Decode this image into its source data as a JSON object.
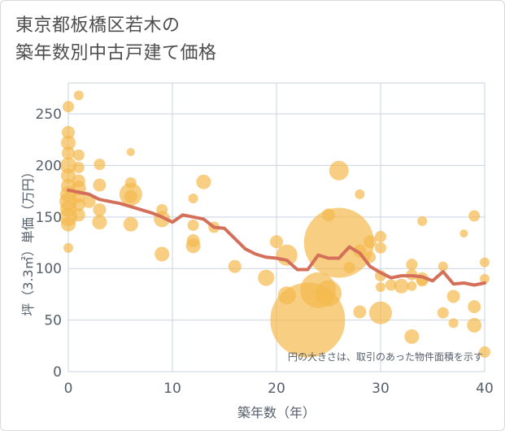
{
  "chart_data": {
    "type": "scatter",
    "title_lines": [
      "東京都板橋区若木の",
      "築年数別中古戸建て価格"
    ],
    "xlabel": "築年数（年）",
    "ylabel": "坪（3.3㎡）単価（万円）",
    "xlim": [
      0,
      40
    ],
    "ylim": [
      0,
      280
    ],
    "x_ticks": [
      0,
      10,
      20,
      30,
      40
    ],
    "y_ticks": [
      0,
      50,
      100,
      150,
      200,
      250
    ],
    "grid": true,
    "annotation": "円の大きさは、取引のあった物件面積を示す",
    "colors": {
      "bubble": "#f3b94d",
      "line": "#d4705a",
      "grid": "#c9d3e2",
      "text": "#555f6b"
    },
    "series": [
      {
        "kind": "bubble",
        "points": [
          {
            "x": 0,
            "y": 257,
            "s": 7
          },
          {
            "x": 0,
            "y": 232,
            "s": 8
          },
          {
            "x": 0,
            "y": 222,
            "s": 9
          },
          {
            "x": 0,
            "y": 212,
            "s": 8
          },
          {
            "x": 0,
            "y": 200,
            "s": 10
          },
          {
            "x": 0,
            "y": 190,
            "s": 9
          },
          {
            "x": 0,
            "y": 180,
            "s": 9
          },
          {
            "x": 0,
            "y": 172,
            "s": 10
          },
          {
            "x": 0,
            "y": 165,
            "s": 11
          },
          {
            "x": 0,
            "y": 158,
            "s": 10
          },
          {
            "x": 0,
            "y": 150,
            "s": 11
          },
          {
            "x": 0,
            "y": 143,
            "s": 9
          },
          {
            "x": 0,
            "y": 120,
            "s": 6
          },
          {
            "x": 1,
            "y": 268,
            "s": 6
          },
          {
            "x": 1,
            "y": 210,
            "s": 7
          },
          {
            "x": 1,
            "y": 198,
            "s": 7
          },
          {
            "x": 1,
            "y": 185,
            "s": 8
          },
          {
            "x": 1,
            "y": 178,
            "s": 9
          },
          {
            "x": 1,
            "y": 170,
            "s": 8
          },
          {
            "x": 1,
            "y": 162,
            "s": 8
          },
          {
            "x": 1,
            "y": 152,
            "s": 8
          },
          {
            "x": 2,
            "y": 165,
            "s": 8
          },
          {
            "x": 3,
            "y": 201,
            "s": 7
          },
          {
            "x": 3,
            "y": 181,
            "s": 8
          },
          {
            "x": 3,
            "y": 157,
            "s": 8
          },
          {
            "x": 3,
            "y": 145,
            "s": 9
          },
          {
            "x": 6,
            "y": 213,
            "s": 5
          },
          {
            "x": 6,
            "y": 183,
            "s": 7
          },
          {
            "x": 6,
            "y": 172,
            "s": 14
          },
          {
            "x": 6,
            "y": 170,
            "s": 8
          },
          {
            "x": 6,
            "y": 143,
            "s": 9
          },
          {
            "x": 9,
            "y": 157,
            "s": 7
          },
          {
            "x": 9,
            "y": 148,
            "s": 10
          },
          {
            "x": 9,
            "y": 114,
            "s": 9
          },
          {
            "x": 12,
            "y": 168,
            "s": 6
          },
          {
            "x": 12,
            "y": 142,
            "s": 7
          },
          {
            "x": 12,
            "y": 127,
            "s": 8
          },
          {
            "x": 12,
            "y": 122,
            "s": 9
          },
          {
            "x": 13,
            "y": 184,
            "s": 9
          },
          {
            "x": 14,
            "y": 140,
            "s": 7
          },
          {
            "x": 16,
            "y": 102,
            "s": 8
          },
          {
            "x": 19,
            "y": 91,
            "s": 10
          },
          {
            "x": 20,
            "y": 126,
            "s": 8
          },
          {
            "x": 21,
            "y": 113,
            "s": 13
          },
          {
            "x": 21,
            "y": 74,
            "s": 11
          },
          {
            "x": 23,
            "y": 50,
            "s": 46
          },
          {
            "x": 24,
            "y": 79,
            "s": 22
          },
          {
            "x": 25,
            "y": 76,
            "s": 16
          },
          {
            "x": 25,
            "y": 152,
            "s": 8
          },
          {
            "x": 26,
            "y": 195,
            "s": 12
          },
          {
            "x": 26,
            "y": 125,
            "s": 43
          },
          {
            "x": 27,
            "y": 101,
            "s": 7
          },
          {
            "x": 28,
            "y": 172,
            "s": 6
          },
          {
            "x": 28,
            "y": 58,
            "s": 8
          },
          {
            "x": 28,
            "y": 117,
            "s": 8
          },
          {
            "x": 29,
            "y": 126,
            "s": 8
          },
          {
            "x": 29,
            "y": 111,
            "s": 7
          },
          {
            "x": 30,
            "y": 131,
            "s": 7
          },
          {
            "x": 30,
            "y": 120,
            "s": 7
          },
          {
            "x": 30,
            "y": 93,
            "s": 7
          },
          {
            "x": 30,
            "y": 82,
            "s": 6
          },
          {
            "x": 30,
            "y": 57,
            "s": 14
          },
          {
            "x": 31,
            "y": 84,
            "s": 7
          },
          {
            "x": 32,
            "y": 83,
            "s": 9
          },
          {
            "x": 33,
            "y": 104,
            "s": 7
          },
          {
            "x": 33,
            "y": 94,
            "s": 7
          },
          {
            "x": 33,
            "y": 83,
            "s": 6
          },
          {
            "x": 33,
            "y": 34,
            "s": 9
          },
          {
            "x": 34,
            "y": 146,
            "s": 6
          },
          {
            "x": 34,
            "y": 90,
            "s": 8
          },
          {
            "x": 34,
            "y": 88,
            "s": 7
          },
          {
            "x": 36,
            "y": 102,
            "s": 6
          },
          {
            "x": 36,
            "y": 57,
            "s": 7
          },
          {
            "x": 37,
            "y": 73,
            "s": 8
          },
          {
            "x": 37,
            "y": 47,
            "s": 6
          },
          {
            "x": 38,
            "y": 134,
            "s": 5
          },
          {
            "x": 39,
            "y": 151,
            "s": 7
          },
          {
            "x": 39,
            "y": 63,
            "s": 8
          },
          {
            "x": 39,
            "y": 45,
            "s": 9
          },
          {
            "x": 40,
            "y": 106,
            "s": 6
          },
          {
            "x": 40,
            "y": 90,
            "s": 6
          },
          {
            "x": 40,
            "y": 19,
            "s": 7
          }
        ]
      },
      {
        "kind": "line",
        "x": [
          0,
          1,
          2,
          3,
          4,
          5,
          6,
          7,
          8,
          9,
          10,
          11,
          12,
          13,
          14,
          15,
          16,
          17,
          18,
          19,
          20,
          21,
          22,
          23,
          24,
          25,
          26,
          27,
          28,
          29,
          30,
          31,
          32,
          33,
          34,
          35,
          36,
          37,
          38,
          39,
          40
        ],
        "y": [
          176,
          174,
          172,
          167,
          165,
          163,
          160,
          157,
          154,
          150,
          145,
          152,
          150,
          148,
          140,
          139,
          129,
          119,
          114,
          111,
          110,
          108,
          99,
          99,
          113,
          110,
          110,
          121,
          115,
          102,
          96,
          91,
          93,
          93,
          92,
          88,
          97,
          85,
          86,
          84,
          86
        ]
      }
    ]
  }
}
